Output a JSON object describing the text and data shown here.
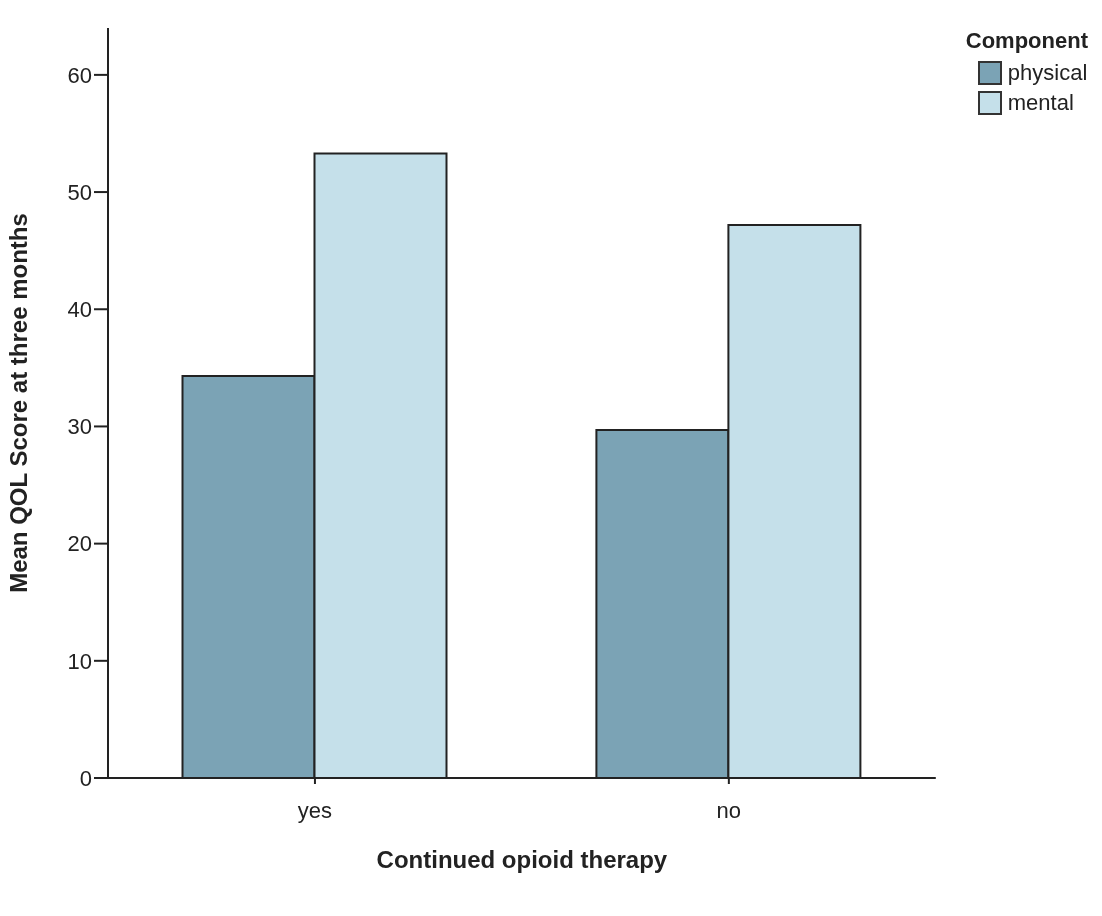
{
  "chart_data": {
    "type": "bar",
    "xlabel": "Continued opioid therapy",
    "ylabel": "Mean QOL Score at three months",
    "legend_title": "Component",
    "categories": [
      "yes",
      "no"
    ],
    "series": [
      {
        "name": "physical",
        "color": "#7ba3b5",
        "values": [
          34.3,
          29.7
        ]
      },
      {
        "name": "mental",
        "color": "#c5e0ea",
        "values": [
          53.3,
          47.2
        ]
      }
    ],
    "ylim": [
      0,
      64
    ],
    "yticks": [
      0,
      10,
      20,
      30,
      40,
      50,
      60
    ],
    "grid": false,
    "legend": "top right"
  }
}
